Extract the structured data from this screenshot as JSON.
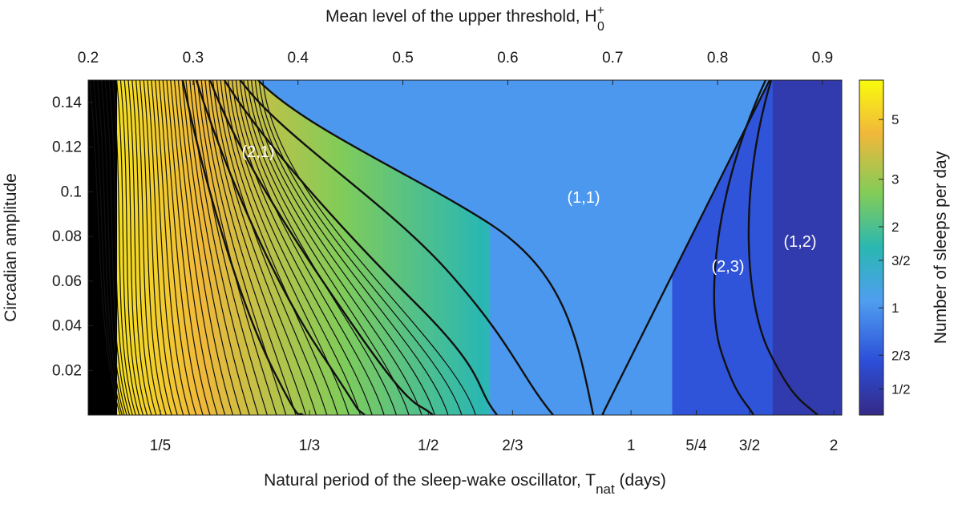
{
  "chart_data": {
    "type": "heatmap",
    "title": "",
    "xlabel_main": "Natural period of the sleep-wake oscillator, T",
    "xlabel_sub": "nat",
    "xlabel_suffix": " (days)",
    "xlabel_top_main": "Mean level of the upper threshold, H",
    "xlabel_top_sub": "0",
    "xlabel_top_sup": "+",
    "ylabel": "Circadian amplitude",
    "colorbar_label": "Number of sleeps per day",
    "ylim": [
      0,
      0.15
    ],
    "yticks": [
      {
        "value": 0.02,
        "label": "0.02"
      },
      {
        "value": 0.04,
        "label": "0.04"
      },
      {
        "value": 0.06,
        "label": "0.06"
      },
      {
        "value": 0.08,
        "label": "0.08"
      },
      {
        "value": 0.1,
        "label": "0.1"
      },
      {
        "value": 0.12,
        "label": "0.12"
      },
      {
        "value": 0.14,
        "label": "0.14"
      }
    ],
    "xticks_bottom": [
      {
        "value": 0.2,
        "label": "1/5"
      },
      {
        "value": 0.333,
        "label": "1/3"
      },
      {
        "value": 0.5,
        "label": "1/2"
      },
      {
        "value": 0.667,
        "label": "2/3"
      },
      {
        "value": 1,
        "label": "1"
      },
      {
        "value": 1.25,
        "label": "5/4"
      },
      {
        "value": 1.5,
        "label": "3/2"
      },
      {
        "value": 2,
        "label": "2"
      }
    ],
    "xticks_top": [
      {
        "value": 0.2,
        "label": "0.2"
      },
      {
        "value": 0.3,
        "label": "0.3"
      },
      {
        "value": 0.4,
        "label": "0.4"
      },
      {
        "value": 0.5,
        "label": "0.5"
      },
      {
        "value": 0.6,
        "label": "0.6"
      },
      {
        "value": 0.7,
        "label": "0.7"
      },
      {
        "value": 0.8,
        "label": "0.8"
      },
      {
        "value": 0.9,
        "label": "0.9"
      }
    ],
    "colorbar_ticks": [
      {
        "value": 5,
        "label": "5"
      },
      {
        "value": 3,
        "label": "3"
      },
      {
        "value": 2,
        "label": "2"
      },
      {
        "value": 1.5,
        "label": "3/2"
      },
      {
        "value": 1,
        "label": "1"
      },
      {
        "value": 0.667,
        "label": "2/3"
      },
      {
        "value": 0.5,
        "label": "1/2"
      }
    ],
    "colorbar_range": [
      0.4,
      7
    ],
    "regions": [
      {
        "label": "(2,1)",
        "sleeps_per_day": 2,
        "T_nat": 0.35,
        "amplitude": 0.121
      },
      {
        "label": "(1,1)",
        "sleeps_per_day": 1,
        "T_nat": 0.88,
        "amplitude": 0.1
      },
      {
        "label": "(2,3)",
        "sleeps_per_day": 0.667,
        "T_nat": 1.4,
        "amplitude": 0.068
      },
      {
        "label": "(1,2)",
        "sleeps_per_day": 0.5,
        "T_nat": 1.78,
        "amplitude": 0.078
      }
    ],
    "colormap": [
      "#352a87",
      "#2c4ed8",
      "#4f9ef0",
      "#2ab7b2",
      "#81cc59",
      "#f0b83a",
      "#f9fb0e"
    ]
  }
}
